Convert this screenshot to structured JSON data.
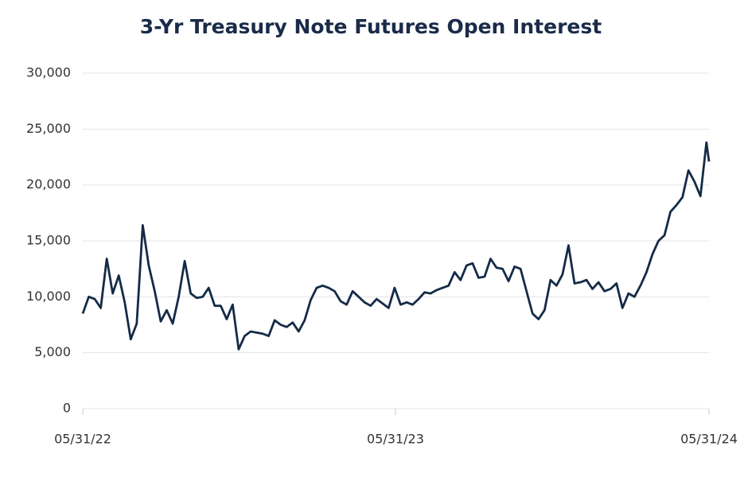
{
  "chart_data": {
    "type": "line",
    "title": "3-Yr Treasury Note Futures Open Interest",
    "x": [
      "05/31/22",
      "06/07/22",
      "06/14/22",
      "06/21/22",
      "06/28/22",
      "07/05/22",
      "07/12/22",
      "07/19/22",
      "07/26/22",
      "08/02/22",
      "08/09/22",
      "08/16/22",
      "08/23/22",
      "08/30/22",
      "09/06/22",
      "09/13/22",
      "09/20/22",
      "09/27/22",
      "10/04/22",
      "10/11/22",
      "10/18/22",
      "10/25/22",
      "11/01/22",
      "11/08/22",
      "11/15/22",
      "11/22/22",
      "11/29/22",
      "12/06/22",
      "12/13/22",
      "12/20/22",
      "12/27/22",
      "01/03/23",
      "01/10/23",
      "01/17/23",
      "01/24/23",
      "01/31/23",
      "02/07/23",
      "02/14/23",
      "02/21/23",
      "02/28/23",
      "03/07/23",
      "03/14/23",
      "03/21/23",
      "03/28/23",
      "04/04/23",
      "04/11/23",
      "04/18/23",
      "04/25/23",
      "05/02/23",
      "05/09/23",
      "05/16/23",
      "05/23/23",
      "05/30/23",
      "06/06/23",
      "06/13/23",
      "06/20/23",
      "06/27/23",
      "07/04/23",
      "07/11/23",
      "07/18/23",
      "07/25/23",
      "08/01/23",
      "08/08/23",
      "08/15/23",
      "08/22/23",
      "08/29/23",
      "09/05/23",
      "09/12/23",
      "09/19/23",
      "09/26/23",
      "10/03/23",
      "10/10/23",
      "10/17/23",
      "10/24/23",
      "10/31/23",
      "11/07/23",
      "11/14/23",
      "11/21/23",
      "11/28/23",
      "12/05/23",
      "12/12/23",
      "12/19/23",
      "12/26/23",
      "01/02/24",
      "01/09/24",
      "01/16/24",
      "01/23/24",
      "01/30/24",
      "02/06/24",
      "02/13/24",
      "02/20/24",
      "02/27/24",
      "03/05/24",
      "03/12/24",
      "03/19/24",
      "03/26/24",
      "04/02/24",
      "04/09/24",
      "04/16/24",
      "04/23/24",
      "04/30/24",
      "05/07/24",
      "05/14/24",
      "05/21/24",
      "05/28/24",
      "05/31/24"
    ],
    "series": [
      {
        "name": "Open Interest",
        "color": "#142b47",
        "values": [
          8500,
          10000,
          9800,
          9000,
          13400,
          10300,
          11900,
          9500,
          6200,
          7600,
          16400,
          12800,
          10500,
          7800,
          8800,
          7600,
          10000,
          13200,
          10300,
          9900,
          10000,
          10800,
          9200,
          9200,
          8000,
          9300,
          5300,
          6500,
          6900,
          6800,
          6700,
          6500,
          7900,
          7500,
          7300,
          7700,
          6900,
          7900,
          9700,
          10800,
          11000,
          10800,
          10500,
          9600,
          9300,
          10500,
          10000,
          9500,
          9200,
          9800,
          9400,
          9000,
          10800,
          9300,
          9500,
          9300,
          9800,
          10400,
          10300,
          10600,
          10800,
          11000,
          12200,
          11500,
          12800,
          13000,
          11700,
          11800,
          13400,
          12600,
          12500,
          11400,
          12700,
          12500,
          10500,
          8500,
          8000,
          8800,
          11500,
          11000,
          12000,
          14600,
          11200,
          11300,
          11500,
          10700,
          11300,
          10500,
          10700,
          11200,
          9000,
          10300,
          10000,
          11000,
          12200,
          13800,
          15000,
          15500,
          17600,
          18200,
          18900,
          21300,
          20300,
          19000,
          23800,
          22100
        ]
      }
    ],
    "xlim": [
      "05/31/22",
      "05/31/24"
    ],
    "xticks": [
      "05/31/22",
      "05/31/23",
      "05/31/24"
    ],
    "ylim": [
      0,
      30000
    ],
    "yticks": [
      0,
      {
        "value": 5000,
        "label": "5,000"
      },
      {
        "value": 10000,
        "label": "10,000"
      },
      {
        "value": 15000,
        "label": "15,000"
      },
      {
        "value": 20000,
        "label": "20,000"
      },
      {
        "value": 25000,
        "label": "25,000"
      },
      {
        "value": 30000,
        "label": "30,000"
      }
    ],
    "grid": true
  }
}
